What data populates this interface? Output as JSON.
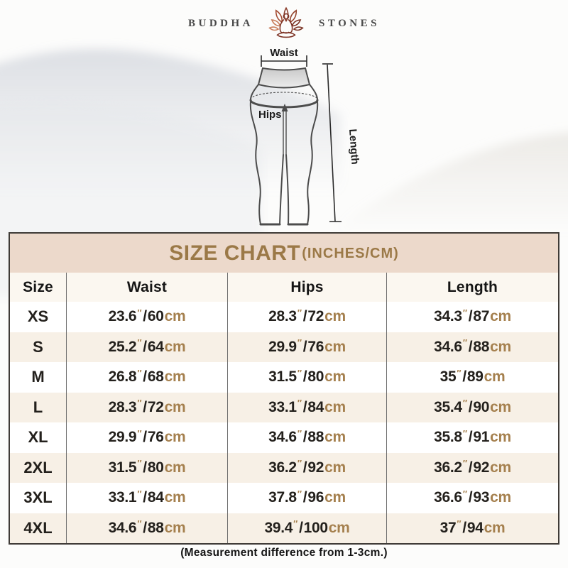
{
  "brand": {
    "word_left": "BUDDHA",
    "word_right": "STONES",
    "logo_icon": "lotus-meditation-icon"
  },
  "diagram": {
    "waist_label": "Waist",
    "hips_label": "Hips",
    "length_label": "Length"
  },
  "size_chart": {
    "title": "SIZE CHART",
    "title_suffix": "(INCHES/CM)",
    "units": {
      "inch_mark": "″",
      "separator": "/",
      "cm_suffix": "cm"
    },
    "note": "(Measurement difference from 1-3cm.)"
  },
  "chart_data": {
    "type": "table",
    "title": "SIZE CHART(INCHES/CM)",
    "columns": [
      "Size",
      "Waist",
      "Hips",
      "Length"
    ],
    "rows": [
      {
        "size": "XS",
        "waist_in": "23.6",
        "waist_cm": "60",
        "hips_in": "28.3",
        "hips_cm": "72",
        "length_in": "34.3",
        "length_cm": "87"
      },
      {
        "size": "S",
        "waist_in": "25.2",
        "waist_cm": "64",
        "hips_in": "29.9",
        "hips_cm": "76",
        "length_in": "34.6",
        "length_cm": "88"
      },
      {
        "size": "M",
        "waist_in": "26.8",
        "waist_cm": "68",
        "hips_in": "31.5",
        "hips_cm": "80",
        "length_in": "35",
        "length_cm": "89"
      },
      {
        "size": "L",
        "waist_in": "28.3",
        "waist_cm": "72",
        "hips_in": "33.1",
        "hips_cm": "84",
        "length_in": "35.4",
        "length_cm": "90"
      },
      {
        "size": "XL",
        "waist_in": "29.9",
        "waist_cm": "76",
        "hips_in": "34.6",
        "hips_cm": "88",
        "length_in": "35.8",
        "length_cm": "91"
      },
      {
        "size": "2XL",
        "waist_in": "31.5",
        "waist_cm": "80",
        "hips_in": "36.2",
        "hips_cm": "92",
        "length_in": "36.2",
        "length_cm": "92"
      },
      {
        "size": "3XL",
        "waist_in": "33.1",
        "waist_cm": "84",
        "hips_in": "37.8",
        "hips_cm": "96",
        "length_in": "36.6",
        "length_cm": "93"
      },
      {
        "size": "4XL",
        "waist_in": "34.6",
        "waist_cm": "88",
        "hips_in": "39.4",
        "hips_cm": "100",
        "length_in": "37",
        "length_cm": "94"
      }
    ],
    "note": "(Measurement difference from 1-3cm.)",
    "layout": {
      "row_striping": true,
      "header_band": true
    }
  },
  "colors": {
    "accent_gold": "#9b7947",
    "unit_tan": "#a5804e",
    "band_bg": "#ecd9cb",
    "alt_row_bg": "#f7f0e6",
    "header_row_bg": "#fbf7f0",
    "panel_border": "#3f3b37",
    "column_divider": "#6f6f6f",
    "text_dark": "#23201c",
    "lotus_dark": "#7c3123",
    "lotus_light": "#c97e5c",
    "sketch_line": "#4c4c4c"
  }
}
